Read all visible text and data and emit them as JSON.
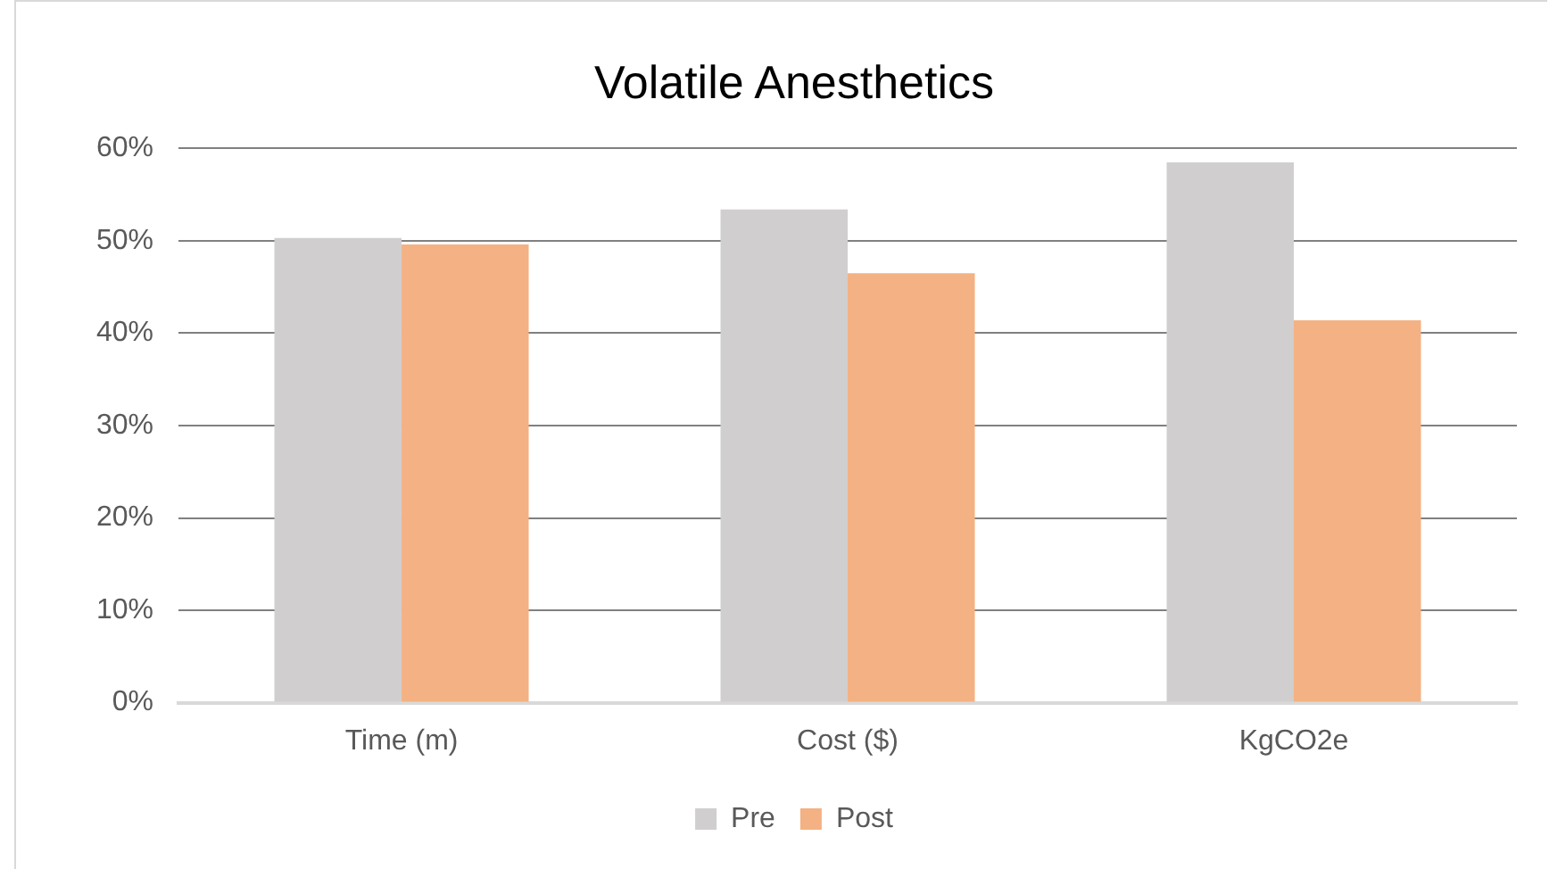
{
  "chart_data": {
    "type": "bar",
    "title": "Volatile Anesthetics",
    "categories": [
      "Time (m)",
      "Cost ($)",
      "KgCO2e"
    ],
    "series": [
      {
        "name": "Pre",
        "color": "#d0cece",
        "values": [
          50.3,
          53.4,
          58.5
        ]
      },
      {
        "name": "Post",
        "color": "#f4b183",
        "values": [
          49.6,
          46.5,
          41.4
        ]
      }
    ],
    "ylim": [
      0,
      60
    ],
    "yticks": [
      {
        "value": 0,
        "label": "0%"
      },
      {
        "value": 10,
        "label": "10%"
      },
      {
        "value": 20,
        "label": "20%"
      },
      {
        "value": 30,
        "label": "30%"
      },
      {
        "value": 40,
        "label": "40%"
      },
      {
        "value": 50,
        "label": "50%"
      },
      {
        "value": 60,
        "label": "60%"
      }
    ],
    "grid": "y",
    "legend": "bottom"
  }
}
